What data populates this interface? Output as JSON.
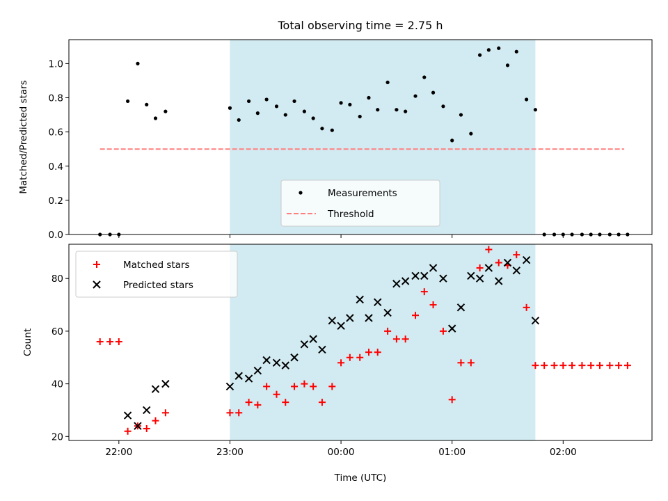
{
  "chart_data": [
    {
      "type": "scatter",
      "title": "Total observing time = 2.75 h",
      "ylabel": "Matched/Predicted stars",
      "xlabel": "",
      "ylim": [
        0,
        1.14
      ],
      "yticks": [
        0.0,
        0.2,
        0.4,
        0.6,
        0.8,
        1.0
      ],
      "yticklabels": [
        "0.0",
        "0.2",
        "0.4",
        "0.6",
        "0.8",
        "1.0"
      ],
      "shaded_interval": {
        "x0": 23.0,
        "x1": 25.75,
        "color": "#add8e6"
      },
      "legend": {
        "location": "lower center"
      },
      "series": [
        {
          "name": "Measurements",
          "marker": "dot",
          "color": "#000000",
          "x": [
            21.83,
            21.92,
            22.0,
            22.08,
            22.17,
            22.25,
            22.33,
            22.42,
            23.0,
            23.08,
            23.17,
            23.25,
            23.33,
            23.42,
            23.5,
            23.58,
            23.67,
            23.75,
            23.83,
            23.92,
            24.0,
            24.08,
            24.17,
            24.25,
            24.33,
            24.42,
            24.5,
            24.58,
            24.67,
            24.75,
            24.83,
            24.92,
            25.0,
            25.08,
            25.17,
            25.25,
            25.33,
            25.42,
            25.5,
            25.58,
            25.67,
            25.75,
            25.83,
            25.92,
            26.0,
            26.08,
            26.17,
            26.25,
            26.33,
            26.42,
            26.5,
            26.58
          ],
          "y": [
            0.0,
            0.0,
            0.0,
            0.78,
            1.0,
            0.76,
            0.68,
            0.72,
            0.74,
            0.67,
            0.78,
            0.71,
            0.79,
            0.75,
            0.7,
            0.78,
            0.72,
            0.68,
            0.62,
            0.61,
            0.77,
            0.76,
            0.69,
            0.8,
            0.73,
            0.89,
            0.73,
            0.72,
            0.81,
            0.92,
            0.83,
            0.75,
            0.55,
            0.7,
            0.59,
            1.05,
            1.08,
            1.09,
            0.99,
            1.07,
            0.79,
            0.73,
            0.0,
            0.0,
            0.0,
            0.0,
            0.0,
            0.0,
            0.0,
            0.0,
            0.0,
            0.0
          ]
        },
        {
          "name": "Threshold",
          "marker": "dashed-line",
          "color": "#ff7f7f",
          "x": [
            21.83,
            26.55
          ],
          "y": [
            0.5,
            0.5
          ]
        }
      ]
    },
    {
      "type": "scatter",
      "title": "",
      "ylabel": "Count",
      "xlabel": "Time (UTC)",
      "xlim": [
        21.55,
        26.8
      ],
      "xticks": [
        22.0,
        23.0,
        24.0,
        25.0,
        26.0
      ],
      "xticklabels": [
        "22:00",
        "23:00",
        "00:00",
        "01:00",
        "02:00"
      ],
      "ylim": [
        18.5,
        93
      ],
      "yticks": [
        20,
        40,
        60,
        80
      ],
      "yticklabels": [
        "20",
        "40",
        "60",
        "80"
      ],
      "shaded_interval": {
        "x0": 23.0,
        "x1": 25.75,
        "color": "#add8e6"
      },
      "legend": {
        "location": "upper left"
      },
      "series": [
        {
          "name": "Matched stars",
          "marker": "plus",
          "color": "#ff0000",
          "x": [
            21.83,
            21.92,
            22.0,
            22.08,
            22.17,
            22.25,
            22.33,
            22.42,
            23.0,
            23.08,
            23.17,
            23.25,
            23.33,
            23.42,
            23.5,
            23.58,
            23.67,
            23.75,
            23.83,
            23.92,
            24.0,
            24.08,
            24.17,
            24.25,
            24.33,
            24.42,
            24.5,
            24.58,
            24.67,
            24.75,
            24.83,
            24.92,
            25.0,
            25.08,
            25.17,
            25.25,
            25.33,
            25.42,
            25.5,
            25.58,
            25.67,
            25.75,
            25.83,
            25.92,
            26.0,
            26.08,
            26.17,
            26.25,
            26.33,
            26.42,
            26.5,
            26.58
          ],
          "y": [
            56,
            56,
            56,
            22,
            24,
            23,
            26,
            29,
            29,
            29,
            33,
            32,
            39,
            36,
            33,
            39,
            40,
            39,
            33,
            39,
            48,
            50,
            50,
            52,
            52,
            60,
            57,
            57,
            66,
            75,
            70,
            60,
            34,
            48,
            48,
            84,
            91,
            86,
            85,
            89,
            69,
            47,
            47,
            47,
            47,
            47,
            47,
            47,
            47,
            47,
            47,
            47
          ]
        },
        {
          "name": "Predicted stars",
          "marker": "x",
          "color": "#000000",
          "x": [
            22.08,
            22.17,
            22.25,
            22.33,
            22.42,
            23.0,
            23.08,
            23.17,
            23.25,
            23.33,
            23.42,
            23.5,
            23.58,
            23.67,
            23.75,
            23.83,
            23.92,
            24.0,
            24.08,
            24.17,
            24.25,
            24.33,
            24.42,
            24.5,
            24.58,
            24.67,
            24.75,
            24.83,
            24.92,
            25.0,
            25.08,
            25.17,
            25.25,
            25.33,
            25.42,
            25.5,
            25.58,
            25.67,
            25.75
          ],
          "y": [
            28,
            24,
            30,
            38,
            40,
            39,
            43,
            42,
            45,
            49,
            48,
            47,
            50,
            55,
            57,
            53,
            64,
            62,
            65,
            72,
            65,
            71,
            67,
            78,
            79,
            81,
            81,
            84,
            80,
            61,
            69,
            81,
            80,
            84,
            79,
            86,
            83,
            87,
            64
          ]
        }
      ]
    }
  ]
}
